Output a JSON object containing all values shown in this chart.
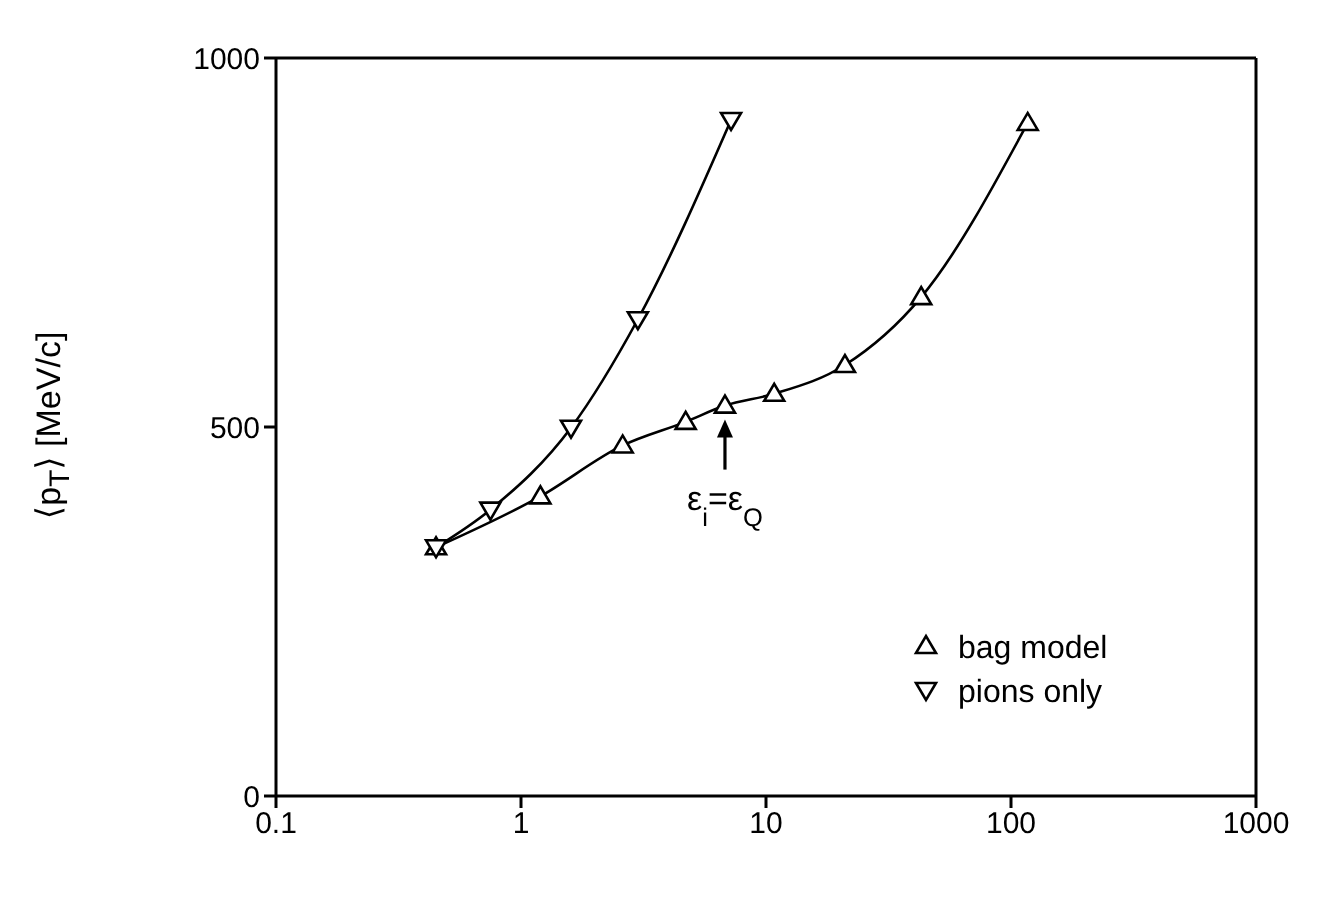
{
  "chart_data": {
    "type": "line",
    "xlabel": null,
    "ylabel": "⟨p$_{T}$⟩ [MeV/c]",
    "series": [
      {
        "name": "bag model",
        "color": "#000000",
        "marker": "triangle",
        "x": [
          0.45,
          1.2,
          2.6,
          4.7,
          6.8,
          10.8,
          21,
          43,
          117
        ],
        "values": [
          337,
          406,
          475,
          507,
          529,
          545,
          584,
          676,
          912
        ]
      },
      {
        "name": "pions only",
        "color": "#000000",
        "marker": "triangle",
        "x": [
          0.45,
          0.75,
          1.6,
          3.0,
          7.2
        ],
        "values": [
          337,
          388,
          499,
          646,
          916
        ]
      }
    ],
    "annotations": [
      {
        "text": "ε$_{i}$=ε$_{Q}$",
        "x": 6.8,
        "y": 529
      }
    ],
    "log": "x",
    "xlim": [
      0.1,
      1000
    ],
    "xticks": [
      0.1,
      1,
      10,
      100,
      1000
    ],
    "ylim": [
      0,
      1000
    ],
    "yticks": [
      0,
      500,
      1000
    ],
    "grid": false,
    "legend": "bottom right",
    "line_style": "solid"
  }
}
